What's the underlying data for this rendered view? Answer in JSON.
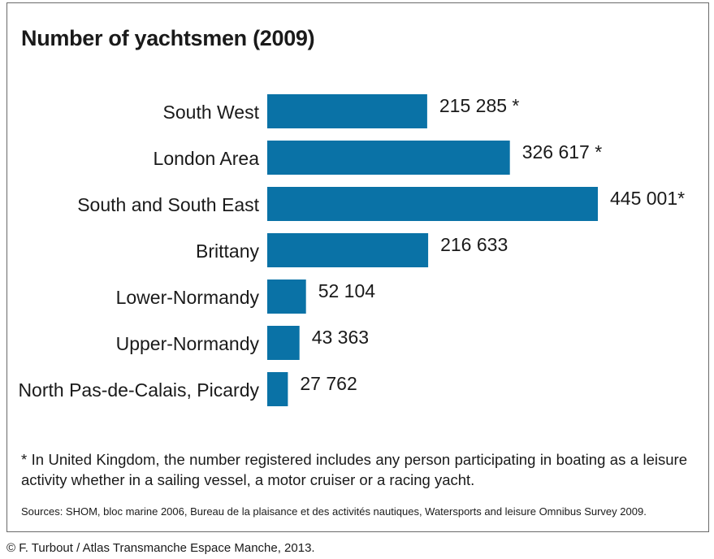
{
  "colors": {
    "bar": "#0a72a6"
  },
  "chart_data": {
    "type": "bar",
    "orientation": "horizontal",
    "title": "Number of yachtsmen (2009)",
    "categories": [
      "South West",
      "London Area",
      "South and South East",
      "Brittany",
      "Lower-Normandy",
      "Upper-Normandy",
      "North Pas-de-Calais, Picardy"
    ],
    "values": [
      215285,
      326617,
      445001,
      216633,
      52104,
      43363,
      27762
    ],
    "data_labels": [
      "215 285 *",
      "326 617 *",
      "445 001*",
      "216 633",
      "52 104",
      "43 363",
      "27 762"
    ],
    "xlim": [
      0,
      445001
    ],
    "grid": false,
    "legend": "none"
  },
  "footnote": "* In United Kingdom, the number registered includes any person participating in boating as a leisure activity whether in a sailing vessel, a motor cruiser or a racing yacht.",
  "sources": "Sources: SHOM, bloc marine 2006, Bureau de la plaisance et des activités nautiques, Watersports and leisure Omnibus Survey 2009.",
  "copyright": "© F. Turbout / Atlas Transmanche Espace Manche, 2013."
}
